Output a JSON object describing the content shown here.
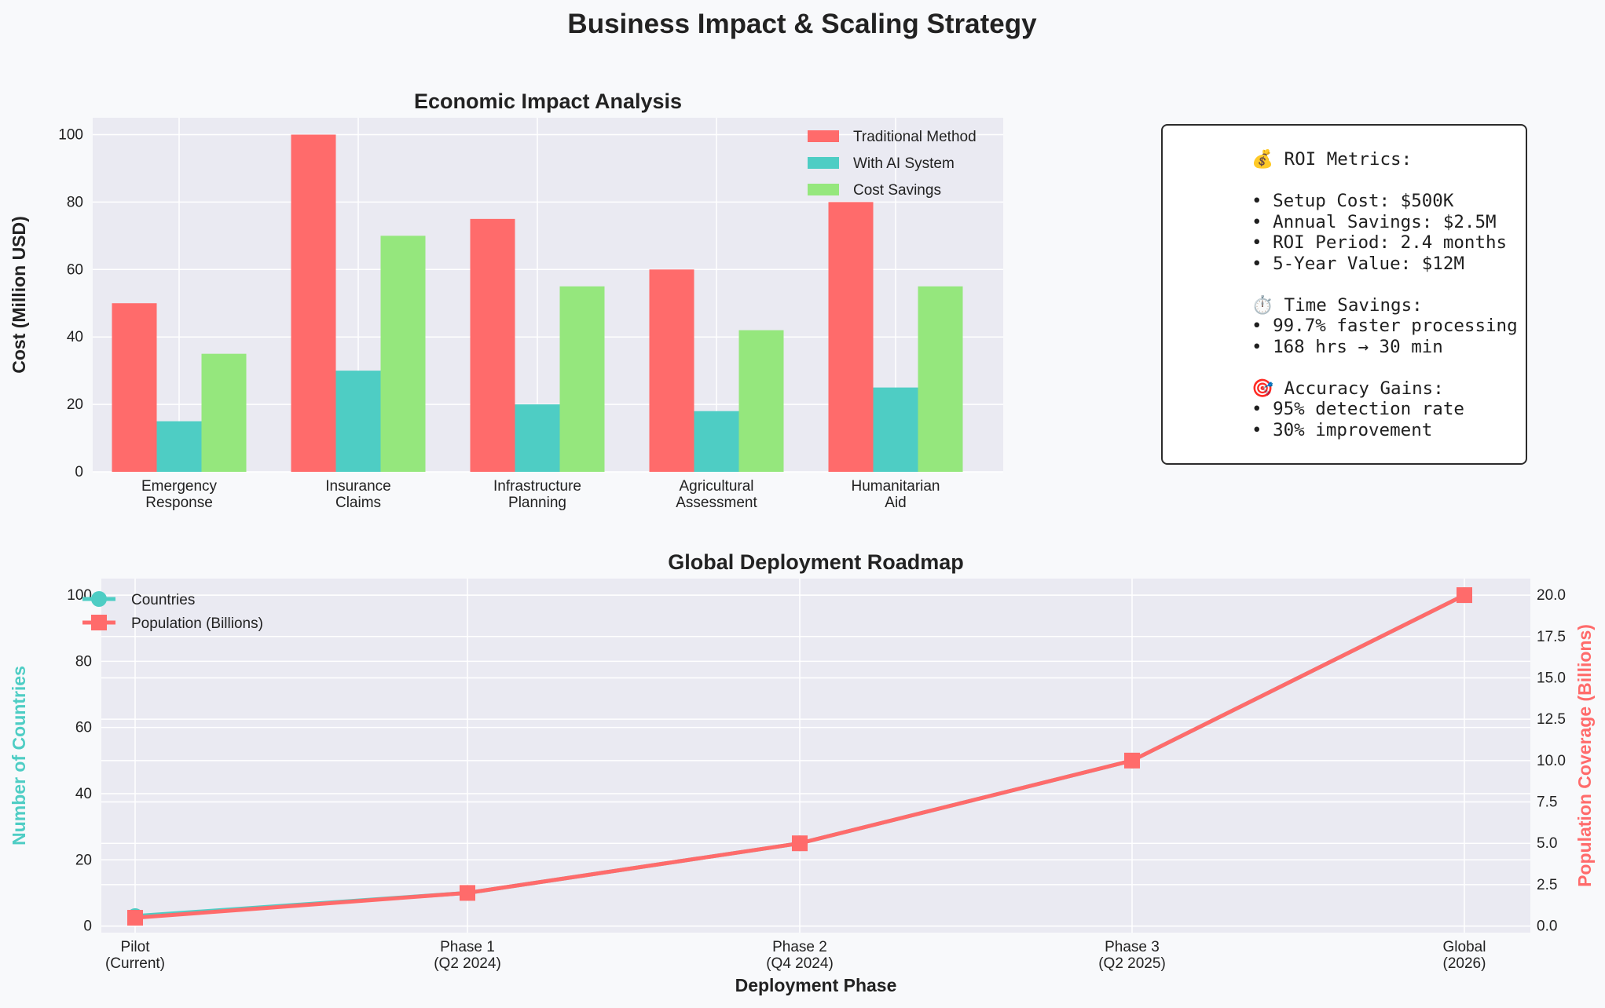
{
  "figure_title": "Business Impact & Scaling Strategy",
  "colors": {
    "traditional": "#ff6b6b",
    "ai": "#4ecdc4",
    "savings": "#95e77d",
    "countries": "#4ecdc4",
    "population": "#ff6b6b",
    "plot_bg": "#eaeaf2",
    "grid": "#ffffff"
  },
  "chart_data": [
    {
      "type": "bar",
      "title": "Economic Impact Analysis",
      "xlabel": "",
      "ylabel": "Cost (Million USD)",
      "ylim": [
        0,
        105
      ],
      "yticks": [
        0,
        20,
        40,
        60,
        80,
        100
      ],
      "categories": [
        [
          "Emergency",
          "Response"
        ],
        [
          "Insurance",
          "Claims"
        ],
        [
          "Infrastructure",
          "Planning"
        ],
        [
          "Agricultural",
          "Assessment"
        ],
        [
          "Humanitarian",
          "Aid"
        ]
      ],
      "series": [
        {
          "name": "Traditional Method",
          "values": [
            50,
            100,
            75,
            60,
            80
          ]
        },
        {
          "name": "With AI System",
          "values": [
            15,
            30,
            20,
            18,
            25
          ]
        },
        {
          "name": "Cost Savings",
          "values": [
            35,
            70,
            55,
            42,
            55
          ]
        }
      ],
      "legend": "top-right",
      "grid": true
    },
    {
      "type": "line",
      "title": "Global Deployment Roadmap",
      "xlabel": "Deployment Phase",
      "ylabel": "Number of Countries",
      "y2label": "Population Coverage (Billions)",
      "categories": [
        [
          "Pilot",
          "(Current)"
        ],
        [
          "Phase 1",
          "(Q2 2024)"
        ],
        [
          "Phase 2",
          "(Q4 2024)"
        ],
        [
          "Phase 3",
          "(Q2 2025)"
        ],
        [
          "Global",
          "(2026)"
        ]
      ],
      "ylim": [
        -2,
        105
      ],
      "yticks": [
        0,
        20,
        40,
        60,
        80,
        100
      ],
      "y2lim": [
        -0.4,
        21
      ],
      "y2ticks": [
        "0.0",
        "2.5",
        "5.0",
        "7.5",
        "10.0",
        "12.5",
        "15.0",
        "17.5",
        "20.0"
      ],
      "series": [
        {
          "name": "Countries",
          "axis": "left",
          "marker": "circle",
          "values": [
            3,
            10,
            25,
            50,
            100
          ]
        },
        {
          "name": "Population (Billions)",
          "axis": "right",
          "marker": "square",
          "values": [
            0.5,
            2,
            5,
            10,
            20
          ]
        }
      ],
      "legend": "top-left",
      "grid": true
    }
  ],
  "roi_panel": {
    "lines": [
      "💰 ROI Metrics:",
      "",
      "• Setup Cost: $500K",
      "• Annual Savings: $2.5M",
      "• ROI Period: 2.4 months",
      "• 5-Year Value: $12M",
      "",
      "⏱️ Time Savings:",
      "• 99.7% faster processing",
      "• 168 hrs → 30 min",
      "",
      "🎯 Accuracy Gains:",
      "• 95% detection rate",
      "• 30% improvement"
    ]
  }
}
